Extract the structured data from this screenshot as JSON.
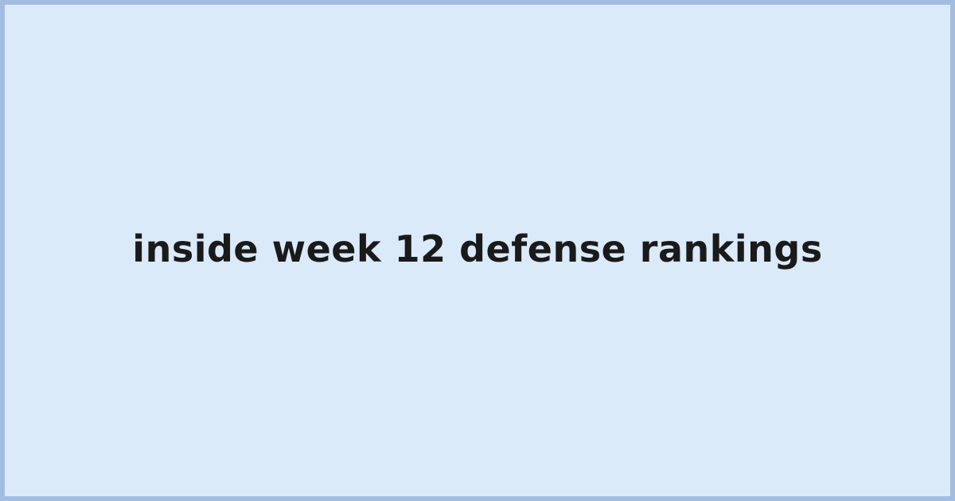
{
  "title": "inside week 12 defense rankings",
  "colors": {
    "background": "#dbeaf9",
    "border": "#a3bde0",
    "text": "#1a1a1a"
  }
}
